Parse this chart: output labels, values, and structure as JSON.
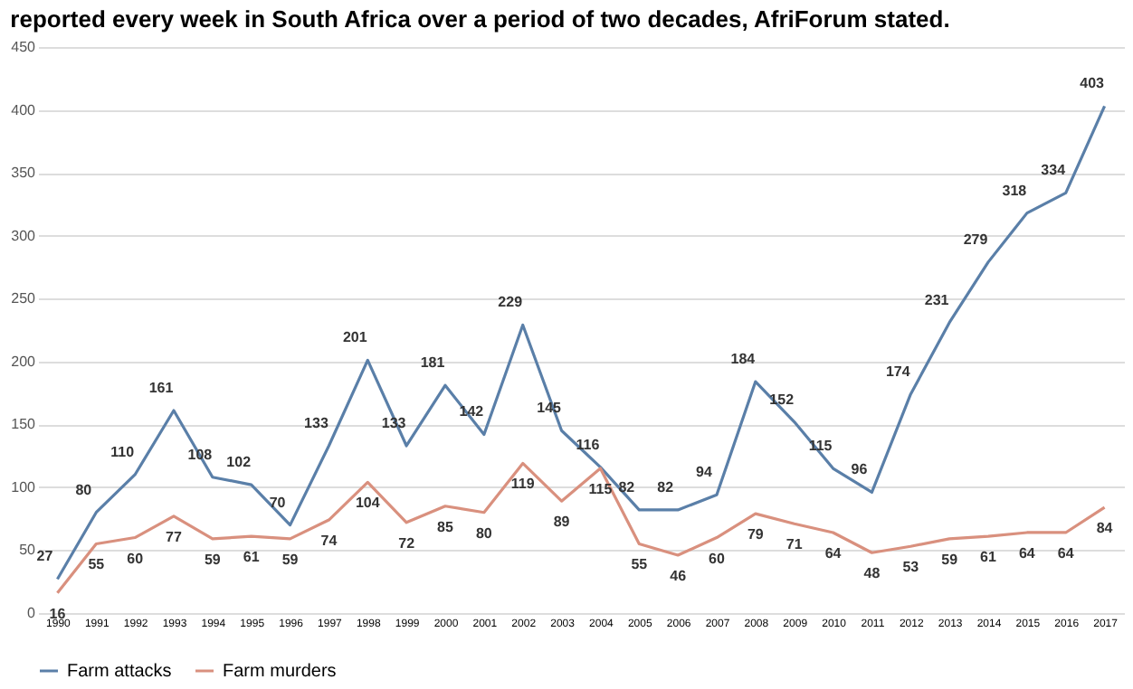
{
  "chart_data": {
    "type": "line",
    "title": "reported every week in South Africa over a period of two decades, AfriForum stated.",
    "categories": [
      "1990",
      "1991",
      "1992",
      "1993",
      "1994",
      "1995",
      "1996",
      "1997",
      "1998",
      "1999",
      "2000",
      "2001",
      "2002",
      "2003",
      "2004",
      "2005",
      "2006",
      "2007",
      "2008",
      "2009",
      "2010",
      "2011",
      "2012",
      "2013",
      "2014",
      "2015",
      "2016",
      "2017"
    ],
    "series": [
      {
        "name": "Farm attacks",
        "color": "#5a7fa8",
        "values": [
          27,
          80,
          110,
          161,
          108,
          102,
          70,
          133,
          201,
          133,
          181,
          142,
          229,
          145,
          116,
          82,
          82,
          94,
          184,
          152,
          115,
          96,
          174,
          231,
          279,
          318,
          334,
          403
        ]
      },
      {
        "name": "Farm murders",
        "color": "#d9907e",
        "values": [
          16,
          55,
          60,
          77,
          59,
          61,
          59,
          74,
          104,
          72,
          85,
          80,
          119,
          89,
          115,
          55,
          46,
          60,
          79,
          71,
          64,
          48,
          53,
          59,
          61,
          64,
          64,
          84
        ]
      }
    ],
    "ylim": [
      0,
      450
    ],
    "yticks": [
      0,
      50,
      100,
      150,
      200,
      250,
      300,
      350,
      400,
      450
    ],
    "grid": "y",
    "legend": "bottom",
    "data_labels": true,
    "marker": "none"
  }
}
